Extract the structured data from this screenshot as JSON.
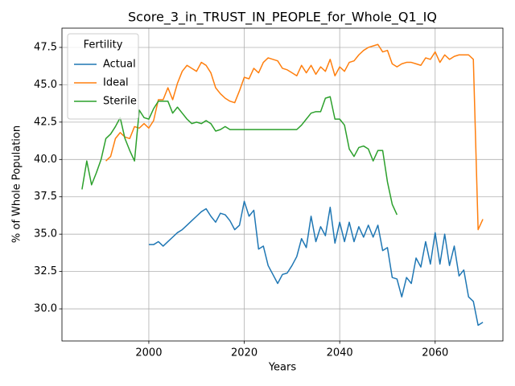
{
  "chart_data": {
    "type": "line",
    "title": "Score_3_in_TRUST_IN_PEOPLE_for_Whole_Q1_IQ",
    "xlabel": "Years",
    "ylabel": "% of Whole Population",
    "legend_title": "Fertility",
    "legend": "upper left",
    "grid": true,
    "x": [
      1986,
      1987,
      1988,
      1989,
      1990,
      1991,
      1992,
      1993,
      1994,
      1995,
      1996,
      1997,
      1998,
      1999,
      2000,
      2001,
      2002,
      2003,
      2004,
      2005,
      2006,
      2007,
      2008,
      2009,
      2010,
      2011,
      2012,
      2013,
      2014,
      2015,
      2016,
      2017,
      2018,
      2019,
      2020,
      2021,
      2022,
      2023,
      2024,
      2025,
      2026,
      2027,
      2028,
      2029,
      2030,
      2031,
      2032,
      2033,
      2034,
      2035,
      2036,
      2037,
      2038,
      2039,
      2040,
      2041,
      2042,
      2043,
      2044,
      2045,
      2046,
      2047,
      2048,
      2049,
      2050,
      2051,
      2052,
      2053,
      2054,
      2055,
      2056,
      2057,
      2058,
      2059,
      2060,
      2061,
      2062,
      2063,
      2064,
      2065,
      2066,
      2067,
      2068,
      2069,
      2070
    ],
    "series": [
      {
        "name": "Actual",
        "color": "#1f77b4",
        "values": [
          null,
          null,
          null,
          null,
          null,
          null,
          null,
          null,
          null,
          null,
          null,
          null,
          null,
          null,
          34.3,
          34.3,
          34.5,
          34.2,
          34.5,
          34.8,
          35.1,
          35.3,
          35.6,
          35.9,
          36.2,
          36.5,
          36.7,
          36.2,
          35.8,
          36.4,
          36.3,
          35.9,
          35.3,
          35.6,
          37.2,
          36.2,
          36.6,
          34.0,
          34.2,
          32.9,
          32.3,
          31.7,
          32.3,
          32.4,
          32.9,
          33.5,
          34.7,
          34.1,
          36.2,
          34.5,
          35.5,
          34.9,
          36.8,
          34.4,
          35.8,
          34.5,
          35.8,
          34.5,
          35.5,
          34.8,
          35.6,
          34.8,
          35.6,
          33.9,
          34.1,
          32.1,
          32.0,
          30.8,
          32.1,
          31.7,
          33.4,
          32.8,
          34.5,
          33.0,
          35.1,
          33.0,
          35.0,
          32.9,
          34.2,
          32.2,
          32.6,
          30.8,
          30.5,
          28.9,
          29.1
        ]
      },
      {
        "name": "Ideal",
        "color": "#ff7f0e",
        "values": [
          null,
          null,
          null,
          null,
          null,
          39.9,
          40.2,
          41.4,
          41.8,
          41.5,
          41.4,
          42.2,
          42.1,
          42.4,
          42.1,
          42.6,
          44.0,
          44.0,
          44.8,
          44.0,
          45.1,
          45.9,
          46.3,
          46.1,
          45.9,
          46.5,
          46.3,
          45.8,
          44.8,
          44.4,
          44.1,
          43.9,
          43.8,
          44.6,
          45.5,
          45.4,
          46.1,
          45.8,
          46.5,
          46.8,
          46.7,
          46.6,
          46.1,
          46.0,
          45.8,
          45.6,
          46.3,
          45.8,
          46.3,
          45.7,
          46.2,
          45.9,
          46.7,
          45.6,
          46.2,
          45.9,
          46.5,
          46.6,
          47.0,
          47.3,
          47.5,
          47.6,
          47.7,
          47.2,
          47.3,
          46.4,
          46.2,
          46.4,
          46.5,
          46.5,
          46.4,
          46.3,
          46.8,
          46.7,
          47.2,
          46.5,
          47.0,
          46.7,
          46.9,
          47.0,
          47.0,
          47.0,
          46.7,
          35.3,
          36.0
        ]
      },
      {
        "name": "Sterile",
        "color": "#2ca02c",
        "values": [
          38.0,
          39.9,
          38.3,
          39.1,
          40.0,
          41.4,
          41.7,
          42.2,
          42.8,
          41.4,
          40.6,
          39.9,
          43.3,
          42.8,
          42.7,
          43.4,
          43.9,
          43.9,
          43.9,
          43.1,
          43.5,
          43.1,
          42.7,
          42.4,
          42.5,
          42.4,
          42.6,
          42.4,
          41.9,
          42.0,
          42.2,
          42.0,
          42.0,
          42.0,
          42.0,
          42.0,
          42.0,
          42.0,
          42.0,
          42.0,
          42.0,
          42.0,
          42.0,
          42.0,
          42.0,
          42.0,
          42.3,
          42.7,
          43.1,
          43.2,
          43.2,
          44.1,
          44.2,
          42.7,
          42.7,
          42.3,
          40.7,
          40.2,
          40.8,
          40.9,
          40.7,
          39.9,
          40.6,
          40.6,
          38.5,
          37.0,
          36.3,
          null,
          null,
          null,
          null,
          null,
          null,
          null,
          null,
          null,
          null,
          null,
          null,
          null,
          null,
          null,
          null,
          null,
          null
        ]
      }
    ],
    "xlim": [
      1981.8,
      2074.2
    ],
    "xticks": [
      2000,
      2020,
      2040,
      2060
    ],
    "ylim": [
      27.85,
      48.79
    ],
    "yticks": [
      {
        "value": 30,
        "label": "30.0"
      },
      32.5,
      {
        "value": 35,
        "label": "35.0"
      },
      37.5,
      {
        "value": 40,
        "label": "40.0"
      },
      42.5,
      {
        "value": 45,
        "label": "45.0"
      },
      47.5
    ]
  }
}
